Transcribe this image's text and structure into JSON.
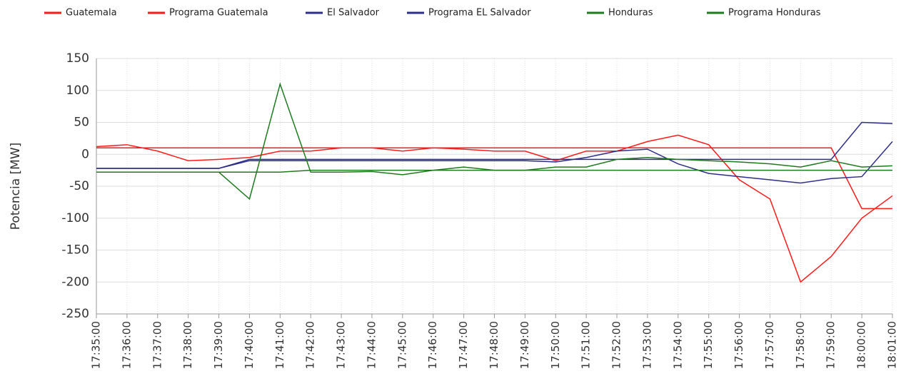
{
  "chart_data": {
    "type": "line",
    "y_label": "Potencia [MW]",
    "categories": [
      "17:35:00",
      "17:36:00",
      "17:37:00",
      "17:38:00",
      "17:39:00",
      "17:40:00",
      "17:41:00",
      "17:42:00",
      "17:43:00",
      "17:44:00",
      "17:45:00",
      "17:46:00",
      "17:47:00",
      "17:48:00",
      "17:49:00",
      "17:50:00",
      "17:51:00",
      "17:52:00",
      "17:53:00",
      "17:54:00",
      "17:55:00",
      "17:56:00",
      "17:57:00",
      "17:58:00",
      "17:59:00",
      "18:00:00",
      "18:01:00"
    ],
    "series": [
      {
        "name": "Guatemala",
        "color": "#ff1a1a",
        "values": [
          12,
          15,
          5,
          -10,
          -8,
          -5,
          5,
          5,
          10,
          10,
          5,
          10,
          8,
          5,
          5,
          -10,
          5,
          5,
          20,
          30,
          15,
          -40,
          -70,
          -200,
          -160,
          -100,
          -65
        ]
      },
      {
        "name": "Programa Guatemala",
        "color": "#ff1a1a",
        "values": [
          10,
          10,
          10,
          10,
          10,
          10,
          10,
          10,
          10,
          10,
          10,
          10,
          10,
          10,
          10,
          10,
          10,
          10,
          10,
          10,
          10,
          10,
          10,
          10,
          10,
          -85,
          -85
        ]
      },
      {
        "name": "El Salvador",
        "color": "#2e2e88",
        "values": [
          -22,
          -22,
          -22,
          -22,
          -22,
          -10,
          -10,
          -10,
          -10,
          -10,
          -10,
          -10,
          -10,
          -10,
          -10,
          -12,
          -5,
          5,
          8,
          -15,
          -30,
          -35,
          -40,
          -45,
          -38,
          -35,
          20
        ]
      },
      {
        "name": "Programa EL Salvador",
        "color": "#2e2e88",
        "values": [
          -22,
          -22,
          -22,
          -22,
          -22,
          -8,
          -8,
          -8,
          -8,
          -8,
          -8,
          -8,
          -8,
          -8,
          -8,
          -8,
          -8,
          -8,
          -8,
          -8,
          -8,
          -8,
          -8,
          -8,
          -8,
          50,
          48
        ]
      },
      {
        "name": "Honduras",
        "color": "#1e7a1e",
        "values": [
          -28,
          -28,
          -28,
          -28,
          -28,
          -70,
          110,
          -28,
          -28,
          -27,
          -32,
          -25,
          -20,
          -25,
          -25,
          -20,
          -20,
          -8,
          -5,
          -8,
          -10,
          -12,
          -15,
          -20,
          -10,
          -20,
          -18
        ]
      },
      {
        "name": "Programa Honduras",
        "color": "#1e7a1e",
        "values": [
          -28,
          -28,
          -28,
          -28,
          -28,
          -28,
          -28,
          -25,
          -25,
          -25,
          -25,
          -25,
          -25,
          -25,
          -25,
          -25,
          -25,
          -25,
          -25,
          -25,
          -25,
          -25,
          -25,
          -25,
          -25,
          -25,
          -25
        ]
      }
    ],
    "ylim": [
      -250,
      150
    ],
    "yticks": [
      150,
      100,
      50,
      0,
      -50,
      -100,
      -150,
      -200,
      -250
    ],
    "grid": true
  }
}
